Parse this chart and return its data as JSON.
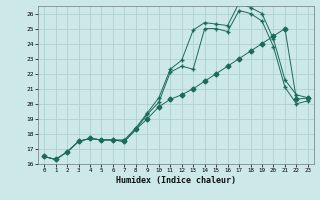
{
  "xlabel": "Humidex (Indice chaleur)",
  "bg_color": "#cce8e8",
  "grid_color": "#b0d0d0",
  "line_color": "#1a6b5a",
  "xlim": [
    -0.5,
    23.5
  ],
  "ylim": [
    16,
    26.5
  ],
  "xticks": [
    0,
    1,
    2,
    3,
    4,
    5,
    6,
    7,
    8,
    9,
    10,
    11,
    12,
    13,
    14,
    15,
    16,
    17,
    18,
    19,
    20,
    21,
    22,
    23
  ],
  "yticks": [
    16,
    17,
    18,
    19,
    20,
    21,
    22,
    23,
    24,
    25,
    26
  ],
  "series": [
    {
      "x": [
        0,
        1,
        2,
        3,
        4,
        5,
        6,
        7,
        8,
        9,
        10,
        11,
        12,
        13,
        14,
        15,
        16,
        17,
        18,
        19,
        20,
        21,
        22,
        23
      ],
      "y": [
        16.5,
        16.3,
        16.8,
        17.5,
        17.7,
        17.6,
        17.6,
        17.6,
        18.4,
        19.4,
        20.4,
        22.3,
        22.9,
        24.9,
        25.4,
        25.3,
        25.2,
        26.7,
        26.4,
        26.0,
        24.3,
        21.6,
        20.6,
        20.4
      ],
      "marker": "+"
    },
    {
      "x": [
        0,
        1,
        2,
        3,
        4,
        5,
        6,
        7,
        8,
        9,
        10,
        11,
        12,
        13,
        14,
        15,
        16,
        17,
        18,
        19,
        20,
        21,
        22,
        23
      ],
      "y": [
        16.5,
        16.3,
        16.8,
        17.5,
        17.7,
        17.6,
        17.6,
        17.5,
        18.3,
        19.3,
        20.1,
        22.1,
        22.5,
        22.3,
        25.0,
        25.0,
        24.8,
        26.2,
        26.0,
        25.5,
        23.8,
        21.1,
        20.0,
        20.2
      ],
      "marker": "+"
    },
    {
      "x": [
        0,
        1,
        2,
        3,
        4,
        5,
        6,
        7,
        8,
        9,
        10,
        11,
        12,
        13,
        14,
        15,
        16,
        17,
        18,
        19,
        20,
        21,
        22,
        23
      ],
      "y": [
        16.5,
        16.3,
        16.8,
        17.5,
        17.7,
        17.6,
        17.6,
        17.5,
        18.3,
        19.0,
        19.8,
        20.3,
        20.6,
        21.0,
        21.5,
        22.0,
        22.5,
        23.0,
        23.5,
        24.0,
        24.5,
        25.0,
        20.3,
        20.4
      ],
      "marker": "D"
    }
  ]
}
